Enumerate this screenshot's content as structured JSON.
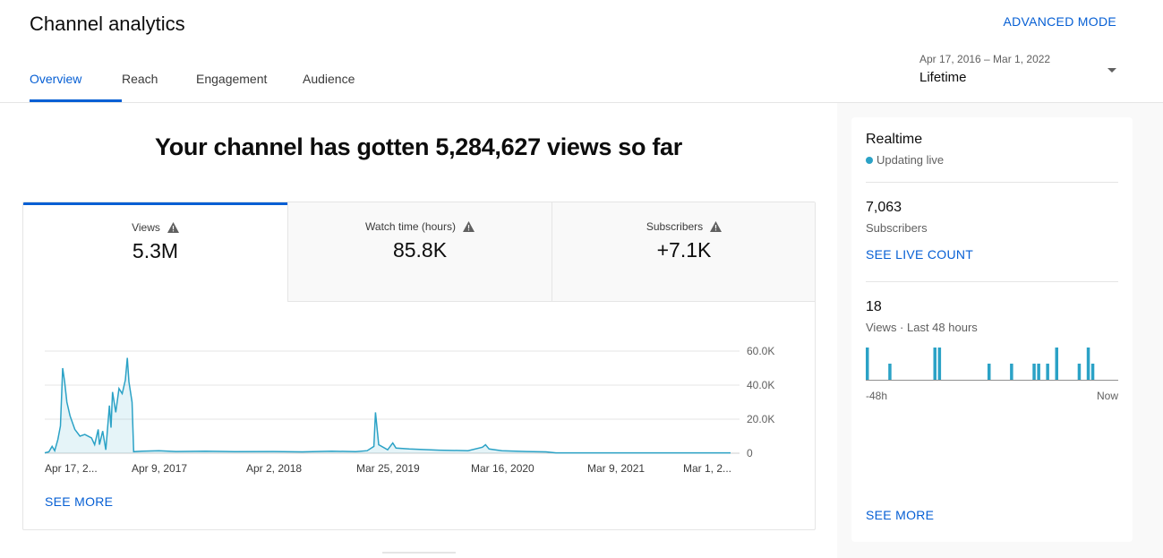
{
  "header": {
    "title": "Channel analytics",
    "advanced_mode": "ADVANCED MODE",
    "tabs": [
      {
        "label": "Overview"
      },
      {
        "label": "Reach"
      },
      {
        "label": "Engagement"
      },
      {
        "label": "Audience"
      }
    ],
    "date_range": "Apr 17, 2016 – Mar 1, 2022",
    "date_label": "Lifetime"
  },
  "main": {
    "headline": "Your channel has gotten 5,284,627 views so far",
    "metrics": [
      {
        "label": "Views",
        "value": "5.3M"
      },
      {
        "label": "Watch time (hours)",
        "value": "85.8K"
      },
      {
        "label": "Subscribers",
        "value": "+7.1K"
      }
    ],
    "see_more": "SEE MORE"
  },
  "chart_data": {
    "type": "area",
    "x_tick_labels": [
      "Apr 17, 2...",
      "Apr 9, 2017",
      "Apr 2, 2018",
      "Mar 25, 2019",
      "Mar 16, 2020",
      "Mar 9, 2021",
      "Mar 1, 2..."
    ],
    "y_tick_labels": [
      "60.0K",
      "40.0K",
      "20.0K",
      "0"
    ],
    "ylim": [
      0,
      60000
    ],
    "grid": true,
    "x_start": "2016-04-17",
    "x_end": "2022-03-01",
    "series": [
      {
        "color": "#2ba2c6",
        "points": [
          [
            "2016-04-17",
            200
          ],
          [
            "2016-04-30",
            800
          ],
          [
            "2016-05-10",
            4000
          ],
          [
            "2016-05-18",
            1500
          ],
          [
            "2016-05-28",
            8000
          ],
          [
            "2016-06-05",
            16000
          ],
          [
            "2016-06-12",
            50000
          ],
          [
            "2016-06-18",
            42000
          ],
          [
            "2016-06-25",
            30000
          ],
          [
            "2016-07-05",
            22000
          ],
          [
            "2016-07-20",
            14000
          ],
          [
            "2016-08-05",
            10000
          ],
          [
            "2016-08-20",
            11000
          ],
          [
            "2016-09-10",
            9000
          ],
          [
            "2016-09-20",
            5000
          ],
          [
            "2016-10-01",
            14000
          ],
          [
            "2016-10-05",
            5000
          ],
          [
            "2016-10-15",
            13000
          ],
          [
            "2016-10-25",
            2000
          ],
          [
            "2016-11-05",
            28000
          ],
          [
            "2016-11-10",
            15000
          ],
          [
            "2016-11-15",
            36000
          ],
          [
            "2016-11-25",
            24000
          ],
          [
            "2016-12-05",
            38000
          ],
          [
            "2016-12-15",
            35000
          ],
          [
            "2016-12-25",
            43000
          ],
          [
            "2016-12-31",
            56000
          ],
          [
            "2017-01-05",
            42000
          ],
          [
            "2017-01-15",
            30000
          ],
          [
            "2017-01-20",
            900
          ],
          [
            "2017-02-15",
            1200
          ],
          [
            "2017-04-09",
            1500
          ],
          [
            "2017-06-01",
            1000
          ],
          [
            "2017-09-01",
            1200
          ],
          [
            "2017-12-01",
            900
          ],
          [
            "2018-04-02",
            1000
          ],
          [
            "2018-07-01",
            800
          ],
          [
            "2018-10-01",
            1200
          ],
          [
            "2018-12-15",
            900
          ],
          [
            "2019-01-20",
            1500
          ],
          [
            "2019-02-10",
            4000
          ],
          [
            "2019-02-15",
            24000
          ],
          [
            "2019-02-25",
            5000
          ],
          [
            "2019-03-25",
            2000
          ],
          [
            "2019-04-10",
            6000
          ],
          [
            "2019-04-20",
            3000
          ],
          [
            "2019-06-01",
            2500
          ],
          [
            "2019-09-01",
            1800
          ],
          [
            "2019-12-01",
            1500
          ],
          [
            "2020-01-15",
            3500
          ],
          [
            "2020-01-25",
            5000
          ],
          [
            "2020-02-05",
            2500
          ],
          [
            "2020-03-16",
            1500
          ],
          [
            "2020-06-01",
            1000
          ],
          [
            "2020-08-01",
            800
          ],
          [
            "2020-09-01",
            200
          ],
          [
            "2021-03-09",
            200
          ],
          [
            "2021-09-01",
            200
          ],
          [
            "2022-03-01",
            200
          ]
        ]
      }
    ]
  },
  "realtime": {
    "title": "Realtime",
    "live_label": "Updating live",
    "subscribers_value": "7,063",
    "subscribers_label": "Subscribers",
    "see_live_count": "SEE LIVE COUNT",
    "views_value": "18",
    "views_label": "Views · Last 48 hours",
    "axis_start": "-48h",
    "axis_end": "Now",
    "see_more": "SEE MORE",
    "bar_color": "#2ba2c6",
    "bars": [
      2,
      0,
      0,
      0,
      0,
      1,
      0,
      0,
      0,
      0,
      0,
      0,
      0,
      0,
      0,
      2,
      2,
      0,
      0,
      0,
      0,
      0,
      0,
      0,
      0,
      0,
      0,
      1,
      0,
      0,
      0,
      0,
      1,
      0,
      0,
      0,
      0,
      1,
      1,
      0,
      1,
      0,
      2,
      0,
      0,
      0,
      0,
      1,
      0,
      2,
      1,
      0,
      0,
      0,
      0,
      0
    ]
  }
}
